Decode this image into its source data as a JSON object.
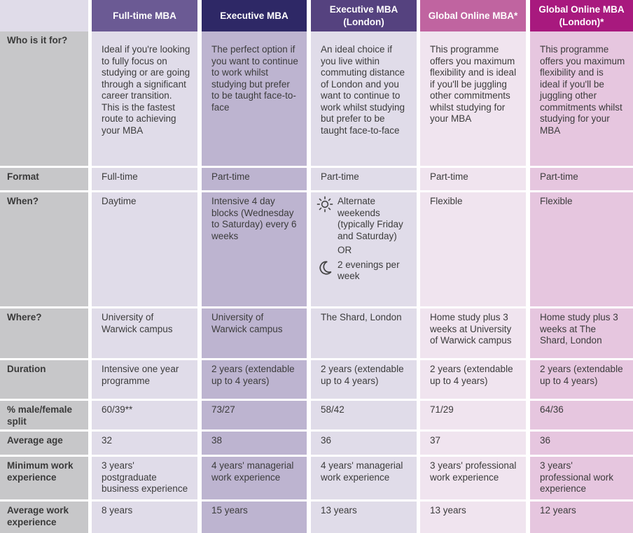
{
  "columns": [
    {
      "title": "Full-time MBA",
      "color": "#6b5a94"
    },
    {
      "title": "Executive MBA",
      "color": "#2e2866"
    },
    {
      "title": "Executive MBA (London)",
      "color": "#55427f"
    },
    {
      "title": "Global Online MBA*",
      "color": "#c064a0"
    },
    {
      "title": "Global Online MBA (London)*",
      "color": "#a8197e"
    }
  ],
  "rows": [
    {
      "label": "Who is it for?",
      "cells": [
        "Ideal if you're looking to fully focus on studying or are going through a significant career transition. This is the fastest route to achieving your MBA",
        "The perfect option if you want to continue to work whilst studying but prefer to be taught face-to-face",
        "An ideal choice if you live within commuting distance of London and you want to continue to work whilst studying but prefer to be taught face-to-face",
        "This programme offers you maximum flexibility and is ideal if you'll be juggling other commitments whilst studying for your MBA",
        "This programme offers you maximum flexibility and is ideal if you'll be juggling other commitments whilst studying for your MBA"
      ]
    },
    {
      "label": "Format",
      "cells": [
        "Full-time",
        "Part-time",
        "Part-time",
        "Part-time",
        "Part-time"
      ]
    },
    {
      "label": "When?",
      "cells": [
        "Daytime",
        "Intensive 4 day blocks (Wednesday to Saturday) every 6 weeks",
        {
          "day": "Alternate weekends (typically Friday and Saturday)",
          "or": "OR",
          "evening": "2 evenings per week",
          "day_icon": "sun-icon",
          "evening_icon": "moon-icon"
        },
        "Flexible",
        "Flexible"
      ]
    },
    {
      "label": "Where?",
      "cells": [
        "University of Warwick campus",
        "University of Warwick campus",
        "The Shard, London",
        "Home study plus 3 weeks at University of Warwick campus",
        "Home study plus 3 weeks at The Shard, London"
      ]
    },
    {
      "label": "Duration",
      "cells": [
        "Intensive one year programme",
        "2 years (extendable up to 4 years)",
        "2 years (extendable up to 4 years)",
        "2 years (extendable up to 4 years)",
        "2 years (extendable up to 4 years)"
      ]
    },
    {
      "label": "% male/female split",
      "cells": [
        "60/39**",
        "73/27",
        "58/42",
        "71/29",
        "64/36"
      ]
    },
    {
      "label": "Average age",
      "cells": [
        "32",
        "38",
        "36",
        "37",
        "36"
      ]
    },
    {
      "label": "Minimum work experience",
      "cells": [
        "3 years' postgraduate business experience",
        "4 years' managerial work experience",
        "4 years' managerial work experience",
        "3 years' professional work experience",
        "3 years' professional work experience"
      ]
    },
    {
      "label": "Average work experience",
      "cells": [
        "8 years",
        "15 years",
        "13 years",
        "13 years",
        "12 years"
      ]
    }
  ]
}
